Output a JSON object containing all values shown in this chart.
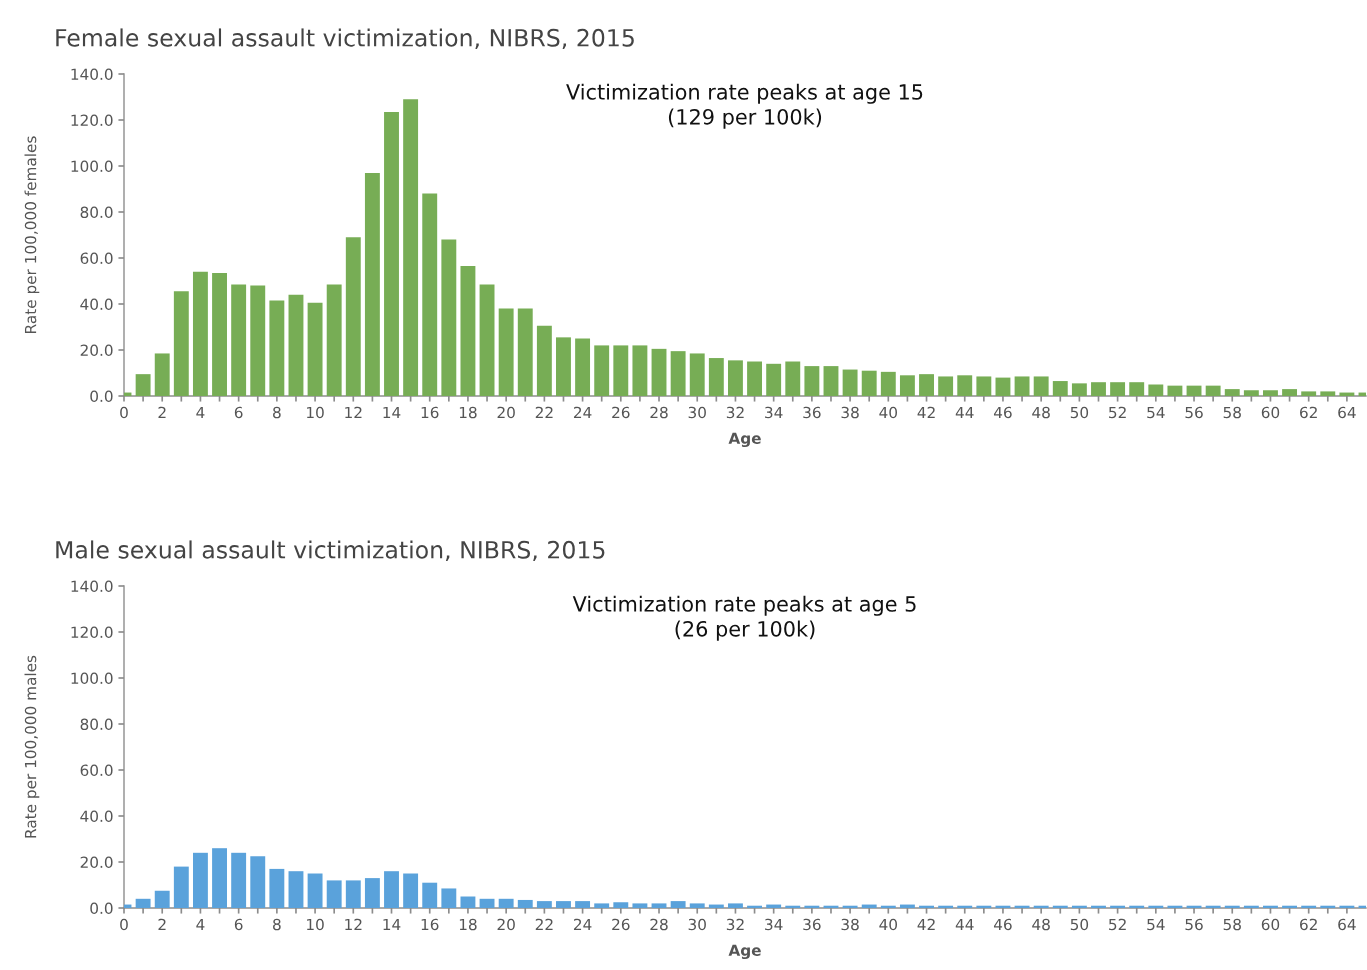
{
  "chart_data": [
    {
      "type": "bar",
      "title": "Female sexual assault victimization, NIBRS, 2015",
      "xlabel": "Age",
      "ylabel": "Rate per 100,000 females",
      "annotations": [
        "Victimization rate peaks at age 15\n(129 per 100k)"
      ],
      "x": [
        0,
        1,
        2,
        3,
        4,
        5,
        6,
        7,
        8,
        9,
        10,
        11,
        12,
        13,
        14,
        15,
        16,
        17,
        18,
        19,
        20,
        21,
        22,
        23,
        24,
        25,
        26,
        27,
        28,
        29,
        30,
        31,
        32,
        33,
        34,
        35,
        36,
        37,
        38,
        39,
        40,
        41,
        42,
        43,
        44,
        45,
        46,
        47,
        48,
        49,
        50,
        51,
        52,
        53,
        54,
        55,
        56,
        57,
        58,
        59,
        60,
        61,
        62,
        63,
        64,
        65
      ],
      "values": [
        1.5,
        9.5,
        18.5,
        45.5,
        54,
        53.5,
        48.5,
        48,
        41.5,
        44,
        40.5,
        48.5,
        69,
        97,
        123.5,
        129,
        88,
        68,
        56.5,
        48.5,
        38,
        38,
        30.5,
        25.5,
        25,
        22,
        22,
        22,
        20.5,
        19.5,
        18.5,
        16.5,
        15.5,
        15,
        14,
        15,
        13,
        13,
        11.5,
        11,
        10.5,
        9,
        9.5,
        8.5,
        9,
        8.5,
        8,
        8.5,
        8.5,
        6.5,
        5.5,
        6,
        6,
        6,
        5,
        4.5,
        4.5,
        4.5,
        3,
        2.5,
        2.5,
        3,
        2,
        2,
        1.5,
        1.5
      ],
      "color": "#77ad55",
      "xlim": [
        0,
        65
      ],
      "ylim": [
        0,
        140
      ],
      "xticks": [
        0,
        {
          "value": 1,
          "label": null
        },
        2,
        {
          "value": 3,
          "label": null
        },
        4,
        {
          "value": 5,
          "label": null
        },
        6,
        {
          "value": 7,
          "label": null
        },
        8,
        {
          "value": 9,
          "label": null
        },
        10,
        {
          "value": 11,
          "label": null
        },
        12,
        {
          "value": 13,
          "label": null
        },
        14,
        {
          "value": 15,
          "label": null
        },
        16,
        {
          "value": 17,
          "label": null
        },
        18,
        {
          "value": 19,
          "label": null
        },
        20,
        {
          "value": 21,
          "label": null
        },
        22,
        {
          "value": 23,
          "label": null
        },
        24,
        {
          "value": 25,
          "label": null
        },
        26,
        {
          "value": 27,
          "label": null
        },
        28,
        {
          "value": 29,
          "label": null
        },
        30,
        {
          "value": 31,
          "label": null
        },
        32,
        {
          "value": 33,
          "label": null
        },
        34,
        {
          "value": 35,
          "label": null
        },
        36,
        {
          "value": 37,
          "label": null
        },
        38,
        {
          "value": 39,
          "label": null
        },
        40,
        {
          "value": 41,
          "label": null
        },
        42,
        {
          "value": 43,
          "label": null
        },
        44,
        {
          "value": 45,
          "label": null
        },
        46,
        {
          "value": 47,
          "label": null
        },
        48,
        {
          "value": 49,
          "label": null
        },
        50,
        {
          "value": 51,
          "label": null
        },
        52,
        {
          "value": 53,
          "label": null
        },
        54,
        {
          "value": 55,
          "label": null
        },
        56,
        {
          "value": 57,
          "label": null
        },
        58,
        {
          "value": 59,
          "label": null
        },
        60,
        {
          "value": 61,
          "label": null
        },
        62,
        {
          "value": 63,
          "label": null
        },
        64
      ],
      "yticks": [
        {
          "value": 0,
          "label": "0.0"
        },
        {
          "value": 20,
          "label": "20.0"
        },
        {
          "value": 40,
          "label": "40.0"
        },
        {
          "value": 60,
          "label": "60.0"
        },
        {
          "value": 80,
          "label": "80.0"
        },
        {
          "value": 100,
          "label": "100.0"
        },
        {
          "value": 120,
          "label": "120.0"
        },
        {
          "value": 140,
          "label": "140.0"
        }
      ],
      "grid": false,
      "legend": false
    },
    {
      "type": "bar",
      "title": "Male sexual assault victimization, NIBRS, 2015",
      "xlabel": "Age",
      "ylabel": "Rate per 100,000 males",
      "annotations": [
        "Victimization rate peaks at age 5\n(26 per 100k)"
      ],
      "x": [
        0,
        1,
        2,
        3,
        4,
        5,
        6,
        7,
        8,
        9,
        10,
        11,
        12,
        13,
        14,
        15,
        16,
        17,
        18,
        19,
        20,
        21,
        22,
        23,
        24,
        25,
        26,
        27,
        28,
        29,
        30,
        31,
        32,
        33,
        34,
        35,
        36,
        37,
        38,
        39,
        40,
        41,
        42,
        43,
        44,
        45,
        46,
        47,
        48,
        49,
        50,
        51,
        52,
        53,
        54,
        55,
        56,
        57,
        58,
        59,
        60,
        61,
        62,
        63,
        64,
        65
      ],
      "values": [
        1.5,
        4,
        7.5,
        18,
        24,
        26,
        24,
        22.5,
        17,
        16,
        15,
        12,
        12,
        13,
        16,
        15,
        11,
        8.5,
        5,
        4,
        4,
        3.5,
        3,
        3,
        3,
        2,
        2.5,
        2,
        2,
        3,
        2,
        1.5,
        2,
        1,
        1.5,
        1,
        1,
        1,
        1,
        1.5,
        1,
        1.5,
        1,
        1,
        1,
        1,
        1,
        1,
        1,
        1,
        1,
        1,
        1,
        1,
        1,
        1,
        1,
        1,
        1,
        1,
        1,
        1,
        1,
        1,
        1,
        1
      ],
      "color": "#5aa2db",
      "xlim": [
        0,
        65
      ],
      "ylim": [
        0,
        140
      ],
      "xticks": [
        0,
        {
          "value": 1,
          "label": null
        },
        2,
        {
          "value": 3,
          "label": null
        },
        4,
        {
          "value": 5,
          "label": null
        },
        6,
        {
          "value": 7,
          "label": null
        },
        8,
        {
          "value": 9,
          "label": null
        },
        10,
        {
          "value": 11,
          "label": null
        },
        12,
        {
          "value": 13,
          "label": null
        },
        14,
        {
          "value": 15,
          "label": null
        },
        16,
        {
          "value": 17,
          "label": null
        },
        18,
        {
          "value": 19,
          "label": null
        },
        20,
        {
          "value": 21,
          "label": null
        },
        22,
        {
          "value": 23,
          "label": null
        },
        24,
        {
          "value": 25,
          "label": null
        },
        26,
        {
          "value": 27,
          "label": null
        },
        28,
        {
          "value": 29,
          "label": null
        },
        30,
        {
          "value": 31,
          "label": null
        },
        32,
        {
          "value": 33,
          "label": null
        },
        34,
        {
          "value": 35,
          "label": null
        },
        36,
        {
          "value": 37,
          "label": null
        },
        38,
        {
          "value": 39,
          "label": null
        },
        40,
        {
          "value": 41,
          "label": null
        },
        42,
        {
          "value": 43,
          "label": null
        },
        44,
        {
          "value": 45,
          "label": null
        },
        46,
        {
          "value": 47,
          "label": null
        },
        48,
        {
          "value": 49,
          "label": null
        },
        50,
        {
          "value": 51,
          "label": null
        },
        52,
        {
          "value": 53,
          "label": null
        },
        54,
        {
          "value": 55,
          "label": null
        },
        56,
        {
          "value": 57,
          "label": null
        },
        58,
        {
          "value": 59,
          "label": null
        },
        60,
        {
          "value": 61,
          "label": null
        },
        62,
        {
          "value": 63,
          "label": null
        },
        64
      ],
      "yticks": [
        {
          "value": 0,
          "label": "0.0"
        },
        {
          "value": 20,
          "label": "20.0"
        },
        {
          "value": 40,
          "label": "40.0"
        },
        {
          "value": 60,
          "label": "60.0"
        },
        {
          "value": 80,
          "label": "80.0"
        },
        {
          "value": 100,
          "label": "100.0"
        },
        {
          "value": 120,
          "label": "120.0"
        },
        {
          "value": 140,
          "label": "140.0"
        }
      ],
      "grid": false,
      "legend": false
    }
  ]
}
